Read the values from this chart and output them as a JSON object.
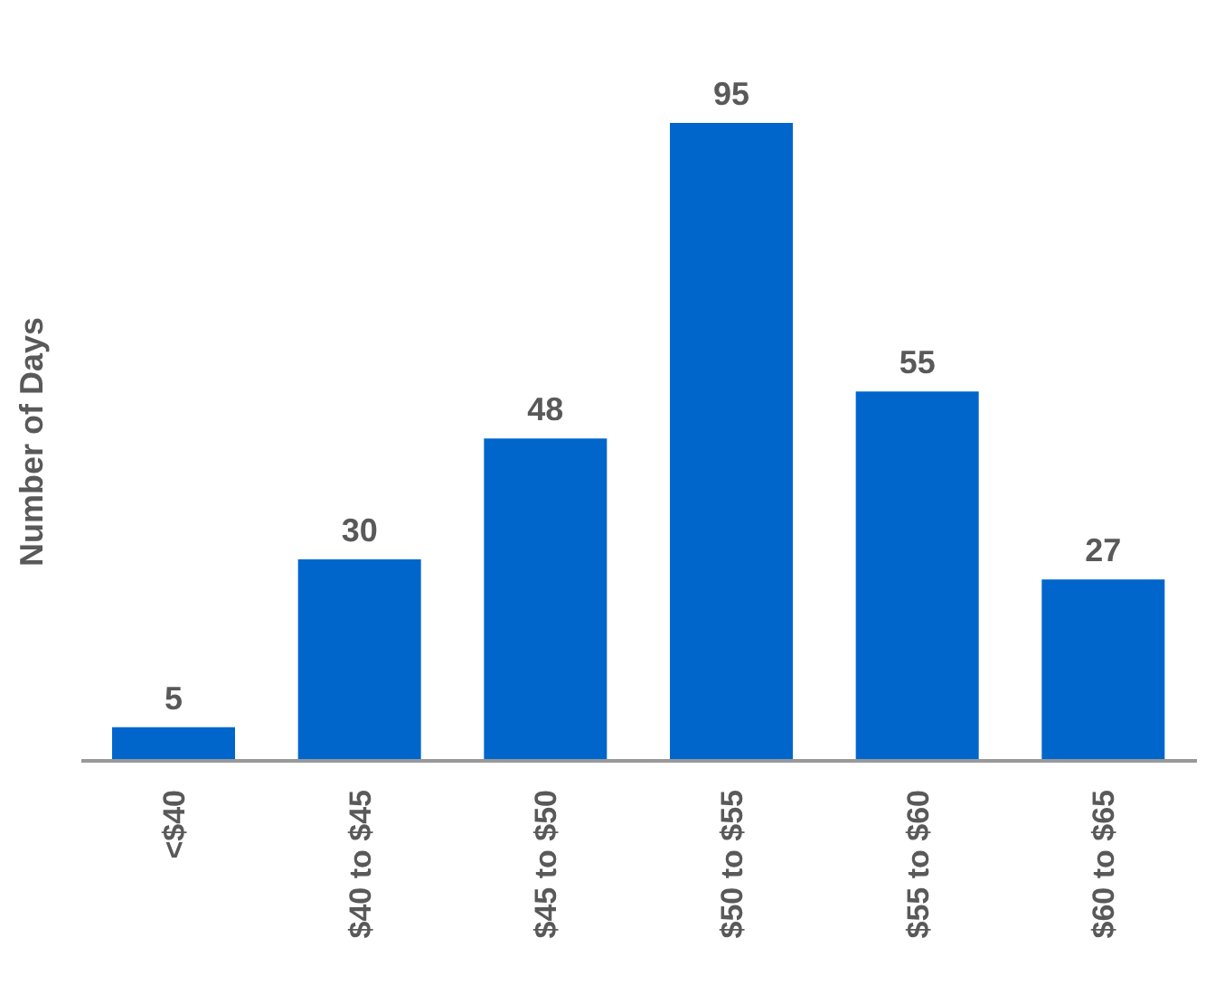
{
  "chart_data": {
    "type": "bar",
    "ylabel": "Number of Days",
    "categories": [
      "<$40",
      "$40 to $45",
      "$45 to $50",
      "$50 to $55",
      "$55 to $60",
      "$60 to $65"
    ],
    "values": [
      5,
      30,
      48,
      95,
      55,
      27
    ],
    "color": "#0066cc",
    "data_labels": true,
    "tick_labels": "x",
    "grid": false
  }
}
